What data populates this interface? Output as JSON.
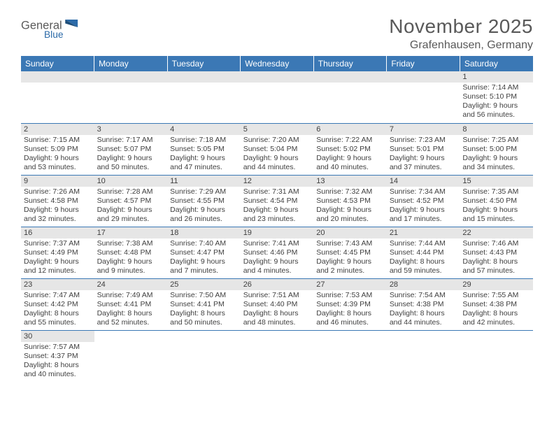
{
  "logo": {
    "text1": "General",
    "text2": "Blue"
  },
  "title": "November 2025",
  "location": "Grafenhausen, Germany",
  "header_bg": "#3b78b5",
  "header_text_color": "#ffffff",
  "daynum_bg": "#e6e6e6",
  "row_border_color": "#3b78b5",
  "text_color": "#404040",
  "title_color": "#595959",
  "days": [
    "Sunday",
    "Monday",
    "Tuesday",
    "Wednesday",
    "Thursday",
    "Friday",
    "Saturday"
  ],
  "weeks": [
    [
      null,
      null,
      null,
      null,
      null,
      null,
      {
        "n": "1",
        "sunrise": "Sunrise: 7:14 AM",
        "sunset": "Sunset: 5:10 PM",
        "daylight": "Daylight: 9 hours and 56 minutes."
      }
    ],
    [
      {
        "n": "2",
        "sunrise": "Sunrise: 7:15 AM",
        "sunset": "Sunset: 5:09 PM",
        "daylight": "Daylight: 9 hours and 53 minutes."
      },
      {
        "n": "3",
        "sunrise": "Sunrise: 7:17 AM",
        "sunset": "Sunset: 5:07 PM",
        "daylight": "Daylight: 9 hours and 50 minutes."
      },
      {
        "n": "4",
        "sunrise": "Sunrise: 7:18 AM",
        "sunset": "Sunset: 5:05 PM",
        "daylight": "Daylight: 9 hours and 47 minutes."
      },
      {
        "n": "5",
        "sunrise": "Sunrise: 7:20 AM",
        "sunset": "Sunset: 5:04 PM",
        "daylight": "Daylight: 9 hours and 44 minutes."
      },
      {
        "n": "6",
        "sunrise": "Sunrise: 7:22 AM",
        "sunset": "Sunset: 5:02 PM",
        "daylight": "Daylight: 9 hours and 40 minutes."
      },
      {
        "n": "7",
        "sunrise": "Sunrise: 7:23 AM",
        "sunset": "Sunset: 5:01 PM",
        "daylight": "Daylight: 9 hours and 37 minutes."
      },
      {
        "n": "8",
        "sunrise": "Sunrise: 7:25 AM",
        "sunset": "Sunset: 5:00 PM",
        "daylight": "Daylight: 9 hours and 34 minutes."
      }
    ],
    [
      {
        "n": "9",
        "sunrise": "Sunrise: 7:26 AM",
        "sunset": "Sunset: 4:58 PM",
        "daylight": "Daylight: 9 hours and 32 minutes."
      },
      {
        "n": "10",
        "sunrise": "Sunrise: 7:28 AM",
        "sunset": "Sunset: 4:57 PM",
        "daylight": "Daylight: 9 hours and 29 minutes."
      },
      {
        "n": "11",
        "sunrise": "Sunrise: 7:29 AM",
        "sunset": "Sunset: 4:55 PM",
        "daylight": "Daylight: 9 hours and 26 minutes."
      },
      {
        "n": "12",
        "sunrise": "Sunrise: 7:31 AM",
        "sunset": "Sunset: 4:54 PM",
        "daylight": "Daylight: 9 hours and 23 minutes."
      },
      {
        "n": "13",
        "sunrise": "Sunrise: 7:32 AM",
        "sunset": "Sunset: 4:53 PM",
        "daylight": "Daylight: 9 hours and 20 minutes."
      },
      {
        "n": "14",
        "sunrise": "Sunrise: 7:34 AM",
        "sunset": "Sunset: 4:52 PM",
        "daylight": "Daylight: 9 hours and 17 minutes."
      },
      {
        "n": "15",
        "sunrise": "Sunrise: 7:35 AM",
        "sunset": "Sunset: 4:50 PM",
        "daylight": "Daylight: 9 hours and 15 minutes."
      }
    ],
    [
      {
        "n": "16",
        "sunrise": "Sunrise: 7:37 AM",
        "sunset": "Sunset: 4:49 PM",
        "daylight": "Daylight: 9 hours and 12 minutes."
      },
      {
        "n": "17",
        "sunrise": "Sunrise: 7:38 AM",
        "sunset": "Sunset: 4:48 PM",
        "daylight": "Daylight: 9 hours and 9 minutes."
      },
      {
        "n": "18",
        "sunrise": "Sunrise: 7:40 AM",
        "sunset": "Sunset: 4:47 PM",
        "daylight": "Daylight: 9 hours and 7 minutes."
      },
      {
        "n": "19",
        "sunrise": "Sunrise: 7:41 AM",
        "sunset": "Sunset: 4:46 PM",
        "daylight": "Daylight: 9 hours and 4 minutes."
      },
      {
        "n": "20",
        "sunrise": "Sunrise: 7:43 AM",
        "sunset": "Sunset: 4:45 PM",
        "daylight": "Daylight: 9 hours and 2 minutes."
      },
      {
        "n": "21",
        "sunrise": "Sunrise: 7:44 AM",
        "sunset": "Sunset: 4:44 PM",
        "daylight": "Daylight: 8 hours and 59 minutes."
      },
      {
        "n": "22",
        "sunrise": "Sunrise: 7:46 AM",
        "sunset": "Sunset: 4:43 PM",
        "daylight": "Daylight: 8 hours and 57 minutes."
      }
    ],
    [
      {
        "n": "23",
        "sunrise": "Sunrise: 7:47 AM",
        "sunset": "Sunset: 4:42 PM",
        "daylight": "Daylight: 8 hours and 55 minutes."
      },
      {
        "n": "24",
        "sunrise": "Sunrise: 7:49 AM",
        "sunset": "Sunset: 4:41 PM",
        "daylight": "Daylight: 8 hours and 52 minutes."
      },
      {
        "n": "25",
        "sunrise": "Sunrise: 7:50 AM",
        "sunset": "Sunset: 4:41 PM",
        "daylight": "Daylight: 8 hours and 50 minutes."
      },
      {
        "n": "26",
        "sunrise": "Sunrise: 7:51 AM",
        "sunset": "Sunset: 4:40 PM",
        "daylight": "Daylight: 8 hours and 48 minutes."
      },
      {
        "n": "27",
        "sunrise": "Sunrise: 7:53 AM",
        "sunset": "Sunset: 4:39 PM",
        "daylight": "Daylight: 8 hours and 46 minutes."
      },
      {
        "n": "28",
        "sunrise": "Sunrise: 7:54 AM",
        "sunset": "Sunset: 4:38 PM",
        "daylight": "Daylight: 8 hours and 44 minutes."
      },
      {
        "n": "29",
        "sunrise": "Sunrise: 7:55 AM",
        "sunset": "Sunset: 4:38 PM",
        "daylight": "Daylight: 8 hours and 42 minutes."
      }
    ],
    [
      {
        "n": "30",
        "sunrise": "Sunrise: 7:57 AM",
        "sunset": "Sunset: 4:37 PM",
        "daylight": "Daylight: 8 hours and 40 minutes."
      },
      null,
      null,
      null,
      null,
      null,
      null
    ]
  ]
}
